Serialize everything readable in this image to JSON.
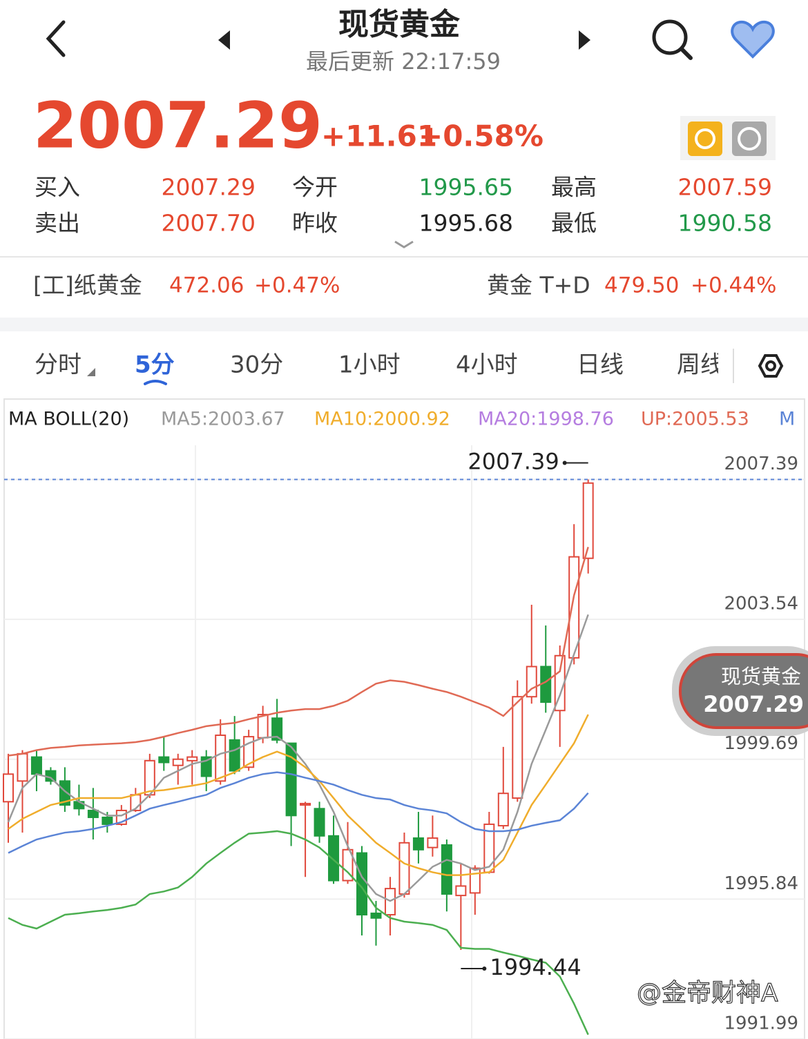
{
  "header": {
    "title": "现货黄金",
    "updated": "最后更新 22:17:59"
  },
  "quote": {
    "price": "2007.29",
    "change": "+11.61",
    "change_pct": "+0.58%",
    "rows": [
      [
        {
          "label": "买入",
          "value": "2007.29"
        },
        {
          "label": "今开",
          "value": "1995.65"
        },
        {
          "label": "最高",
          "value": "2007.59"
        }
      ],
      [
        {
          "label": "卖出",
          "value": "2007.70"
        },
        {
          "label": "昨收",
          "value": "1995.68"
        },
        {
          "label": "最低",
          "value": "1990.58"
        }
      ]
    ]
  },
  "related": [
    {
      "name": "[工]纸黄金",
      "price": "472.06",
      "change": "+0.47%"
    },
    {
      "name": "黄金 T+D",
      "price": "479.50",
      "change": "+0.44%"
    }
  ],
  "tabs": [
    "分时",
    "5分",
    "30分",
    "1小时",
    "4小时",
    "日线",
    "周线"
  ],
  "chart_data": {
    "type": "candlestick",
    "indicator": "MA BOLL(20)",
    "up_color": "#e0483b",
    "down_color": "#1e9a3e",
    "ylim": [
      1991.99,
      2008.33
    ],
    "yticks": [
      2007.39,
      2003.54,
      1999.69,
      1995.84,
      1991.99
    ],
    "grid": true,
    "open": [
      1998.52,
      1999.09,
      1999.75,
      1999.37,
      1999.09,
      1998.52,
      1998.28,
      1998.09,
      1997.9,
      1998.28,
      1998.71,
      1999.75,
      1999.52,
      1999.65,
      1999.75,
      1999.09,
      2000.22,
      1999.47,
      2000.28,
      2000.82,
      2000.13,
      1998.43,
      1998.33,
      1997.58,
      1996.35,
      1997.11,
      1995.45,
      1995.41,
      1995.98,
      1997.52,
      1997.26,
      1997.33,
      1995.94,
      1996.01,
      1996.58,
      1997.86,
      1998.62,
      2001.41,
      2002.24,
      2001.03,
      2002.48,
      2005.22
    ],
    "high": [
      1999.84,
      1999.94,
      1999.94,
      1999.47,
      1999.47,
      1998.99,
      1998.9,
      1998.24,
      1998.43,
      1998.9,
      1999.84,
      2000.31,
      1999.84,
      1999.94,
      1999.94,
      2000.79,
      2000.88,
      2000.5,
      2001.16,
      2001.35,
      2000.13,
      1998.52,
      1998.52,
      1998.14,
      1997.96,
      1997.3,
      1995.79,
      1996.45,
      1997.67,
      1998.24,
      1998.14,
      1997.48,
      1996.82,
      1996.77,
      1998.24,
      2000.03,
      2001.86,
      2003.94,
      2003.37,
      2002.82,
      2006.16,
      2007.39
    ],
    "low": [
      1997.39,
      1997.67,
      1998.81,
      1998.99,
      1998.24,
      1998.14,
      1997.48,
      1997.67,
      1997.86,
      1998.24,
      1998.62,
      1999.37,
      1998.99,
      1998.99,
      1998.81,
      1998.99,
      1999.28,
      1999.37,
      2000.13,
      2000.13,
      1997.3,
      1996.45,
      1997.39,
      1996.26,
      1996.26,
      1994.84,
      1994.56,
      1994.84,
      1995.88,
      1996.82,
      1997.01,
      1995.5,
      1994.44,
      1995.41,
      1996.54,
      1997.77,
      1998.52,
      2001.22,
      2000.97,
      2000.03,
      2002.3,
      2004.8
    ],
    "close": [
      1999.28,
      1999.84,
      1999.28,
      1999.09,
      1998.43,
      1998.33,
      1998.09,
      1997.9,
      1998.28,
      1998.71,
      1999.65,
      1999.6,
      1999.69,
      1999.75,
      1999.22,
      2000.35,
      1999.37,
      2000.31,
      2000.92,
      2000.22,
      1998.14,
      1998.47,
      1997.58,
      1996.35,
      1997.2,
      1995.41,
      1995.32,
      1996.13,
      1997.39,
      1997.2,
      1997.52,
      1995.98,
      1996.2,
      1996.69,
      1997.9,
      1998.75,
      2001.41,
      2002.24,
      2001.26,
      2002.54,
      2005.26,
      2007.29
    ],
    "lines": [
      {
        "name": "MA5:2003.67",
        "color": "#9a9a9a",
        "values": [
          1997.96,
          1998.9,
          1999.28,
          1999.18,
          1998.81,
          1998.52,
          1998.33,
          1998.14,
          1998.14,
          1998.33,
          1998.71,
          1999.18,
          1999.37,
          1999.56,
          1999.65,
          1999.84,
          1999.94,
          2000.13,
          2000.28,
          2000.31,
          2000.03,
          1999.56,
          1998.99,
          1998.24,
          1997.3,
          1996.45,
          1995.98,
          1995.79,
          1995.98,
          1996.35,
          1996.73,
          1996.92,
          1996.82,
          1996.64,
          1996.73,
          1997.2,
          1998.24,
          1999.56,
          2000.5,
          2001.45,
          2002.58,
          2003.67
        ]
      },
      {
        "name": "MA10:2000.92",
        "color": "#f0ad2c",
        "values": [
          1997.77,
          1998.05,
          1998.24,
          1998.43,
          1998.52,
          1998.62,
          1998.62,
          1998.62,
          1998.62,
          1998.71,
          1998.81,
          1998.84,
          1998.9,
          1998.96,
          1999.03,
          1999.18,
          1999.33,
          1999.56,
          1999.75,
          1999.9,
          1999.75,
          1999.47,
          1999.09,
          1998.62,
          1998.14,
          1997.77,
          1997.39,
          1997.11,
          1996.82,
          1996.69,
          1996.58,
          1996.5,
          1996.5,
          1996.54,
          1996.58,
          1996.92,
          1997.67,
          1998.43,
          1998.99,
          1999.56,
          2000.13,
          2000.92
        ]
      },
      {
        "name": "MA20:1998.76",
        "color": "#5b84d6",
        "legend_color": "#b57de0",
        "values": [
          1997.11,
          1997.3,
          1997.48,
          1997.58,
          1997.67,
          1997.71,
          1997.77,
          1997.86,
          1997.96,
          1998.14,
          1998.33,
          1998.43,
          1998.52,
          1998.62,
          1998.71,
          1998.9,
          1999.03,
          1999.18,
          1999.28,
          1999.33,
          1999.28,
          1999.18,
          1999.09,
          1998.99,
          1998.84,
          1998.71,
          1998.62,
          1998.58,
          1998.43,
          1998.33,
          1998.28,
          1998.2,
          1997.96,
          1997.77,
          1997.71,
          1997.71,
          1997.75,
          1997.86,
          1997.94,
          1998.01,
          1998.33,
          1998.76
        ]
      },
      {
        "name": "UP:2005.53",
        "color": "#e06a55",
        "values": [
          1999.79,
          1999.84,
          1999.94,
          2000.0,
          2000.03,
          2000.07,
          2000.09,
          2000.11,
          2000.13,
          2000.16,
          2000.22,
          2000.31,
          2000.41,
          2000.5,
          2000.6,
          2000.65,
          2000.69,
          2000.79,
          2000.88,
          2000.97,
          2001.03,
          2001.07,
          2001.07,
          2001.16,
          2001.3,
          2001.54,
          2001.77,
          2001.86,
          2001.82,
          2001.73,
          2001.63,
          2001.54,
          2001.41,
          2001.26,
          2001.11,
          2000.88,
          2001.26,
          2001.63,
          2001.82,
          2002.11,
          2004.2,
          2005.53
        ]
      },
      {
        "color": "#4caf50",
        "values": [
          1995.32,
          1995.13,
          1995.03,
          1995.22,
          1995.41,
          1995.45,
          1995.5,
          1995.54,
          1995.6,
          1995.69,
          1995.98,
          1996.05,
          1996.16,
          1996.45,
          1996.82,
          1997.11,
          1997.39,
          1997.64,
          1997.67,
          1997.71,
          1997.64,
          1997.48,
          1997.26,
          1996.92,
          1996.58,
          1996.16,
          1995.6,
          1995.32,
          1995.22,
          1995.18,
          1995.13,
          1994.99,
          1994.5,
          1994.47,
          1994.47,
          1994.37,
          1994.28,
          1994.18,
          1994.09,
          1993.71,
          1992.96,
          1992.11
        ]
      }
    ],
    "legend_more": "M",
    "annotations": [
      {
        "text": "2007.39",
        "value": 2007.39
      },
      {
        "text": "1994.44",
        "value": 1994.44
      }
    ],
    "tag": {
      "name": "现货黄金",
      "value": "2007.29"
    },
    "watermark": "@金帝财神A"
  }
}
